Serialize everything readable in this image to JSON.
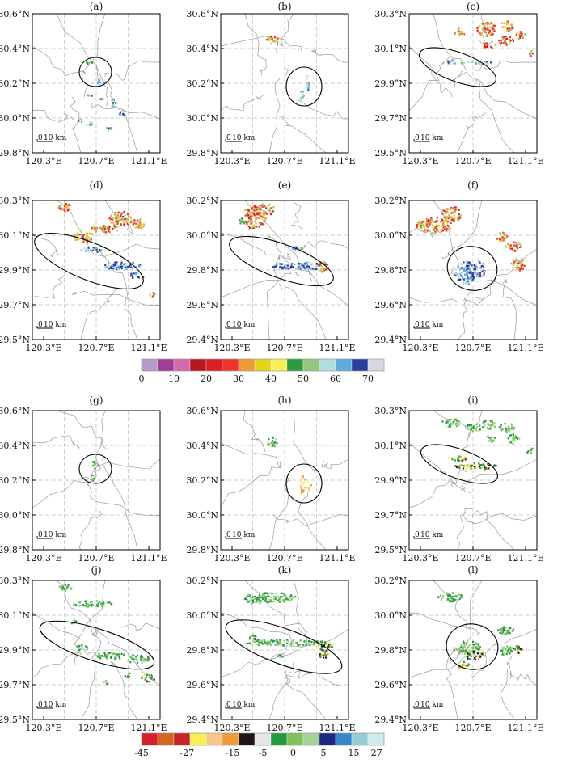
{
  "figure": {
    "colorbar_top": {
      "colors": [
        "#b59acb",
        "#a23c96",
        "#d06aa8",
        "#b5181e",
        "#d81f26",
        "#ed3530",
        "#f09a34",
        "#e2d31c",
        "#f7f156",
        "#2e9a3f",
        "#92c97f",
        "#b2dde0",
        "#60a9dd",
        "#2b3f9f",
        "#d8d8e2"
      ],
      "labels": [
        "0",
        "10",
        "20",
        "30",
        "40",
        "50",
        "60",
        "70"
      ]
    },
    "colorbar_bottom": {
      "colors": [
        "#d3202a",
        "#d4661f",
        "#c4242b",
        "#f7f150",
        "#f6c88a",
        "#ee9c3a",
        "#1f1416",
        "#e5e5e5",
        "#259a3e",
        "#7fc25b",
        "#a4d19a",
        "#1b2a80",
        "#3b86c9",
        "#96ccd3",
        "#cfeaea"
      ],
      "labels": [
        "-45",
        "-27",
        "-15",
        "-5",
        "0",
        "5",
        "15",
        "27"
      ]
    }
  },
  "chart_data": [
    {
      "panel": "(a)",
      "type": "map",
      "field": "reflectivity",
      "ylabels": [
        "30.6°N",
        "30.4°N",
        "30.2°N",
        "30.0°N",
        "29.8°N"
      ],
      "xlabels": [
        "120.3°E",
        "120.7°E",
        "121.1°E"
      ],
      "scalebar": "10 km"
    },
    {
      "panel": "(b)",
      "type": "map",
      "field": "reflectivity",
      "ylabels": [
        "30.6°N",
        "30.4°N",
        "30.2°N",
        "30.0°N",
        "29.8°N"
      ],
      "xlabels": [
        "120.3°E",
        "120.7°E",
        "121.1°E"
      ],
      "scalebar": "10 km"
    },
    {
      "panel": "(c)",
      "type": "map",
      "field": "reflectivity",
      "ylabels": [
        "30.3°N",
        "30.1°N",
        "29.9°N",
        "29.7°N",
        "29.5°N"
      ],
      "xlabels": [
        "120.3°E",
        "120.7°E",
        "121.1°E"
      ],
      "scalebar": "10 km"
    },
    {
      "panel": "(d)",
      "type": "map",
      "field": "reflectivity",
      "ylabels": [
        "30.3°N",
        "30.1°N",
        "29.9°N",
        "29.7°N",
        "29.5°N"
      ],
      "xlabels": [
        "120.3°E",
        "120.7°E",
        "121.1°E"
      ],
      "scalebar": "10 km"
    },
    {
      "panel": "(e)",
      "type": "map",
      "field": "reflectivity",
      "ylabels": [
        "30.2°N",
        "30.0°N",
        "29.8°N",
        "29.6°N",
        "29.4°N"
      ],
      "xlabels": [
        "120.3°E",
        "120.7°E",
        "121.1°E"
      ],
      "scalebar": "10 km"
    },
    {
      "panel": "(f)",
      "type": "map",
      "field": "reflectivity",
      "ylabels": [
        "30.2°N",
        "30.0°N",
        "29.8°N",
        "29.6°N",
        "29.4°N"
      ],
      "xlabels": [
        "120.3°E",
        "120.7°E",
        "121.1°E"
      ],
      "scalebar": "10 km"
    },
    {
      "panel": "(g)",
      "type": "map",
      "field": "velocity",
      "ylabels": [
        "30.6°N",
        "30.4°N",
        "30.2°N",
        "30.0°N",
        "29.8°N"
      ],
      "xlabels": [
        "120.3°E",
        "120.7°E",
        "121.1°E"
      ],
      "scalebar": "10 km"
    },
    {
      "panel": "(h)",
      "type": "map",
      "field": "velocity",
      "ylabels": [
        "30.6°N",
        "30.4°N",
        "30.2°N",
        "30.0°N",
        "29.8°N"
      ],
      "xlabels": [
        "120.3°E",
        "120.7°E",
        "121.1°E"
      ],
      "scalebar": "10 km"
    },
    {
      "panel": "(i)",
      "type": "map",
      "field": "velocity",
      "ylabels": [
        "30.3°N",
        "30.1°N",
        "29.9°N",
        "29.7°N",
        "29.5°N"
      ],
      "xlabels": [
        "120.3°E",
        "120.7°E",
        "121.1°E"
      ],
      "scalebar": "10 km"
    },
    {
      "panel": "(j)",
      "type": "map",
      "field": "velocity",
      "ylabels": [
        "30.3°N",
        "30.1°N",
        "29.9°N",
        "29.7°N",
        "29.5°N"
      ],
      "xlabels": [
        "120.3°E",
        "120.7°E",
        "121.1°E"
      ],
      "scalebar": "10 km"
    },
    {
      "panel": "(k)",
      "type": "map",
      "field": "velocity",
      "ylabels": [
        "30.2°N",
        "30.0°N",
        "29.8°N",
        "29.6°N",
        "29.4°N"
      ],
      "xlabels": [
        "120.3°E",
        "120.7°E",
        "121.1°E"
      ],
      "scalebar": "10 km"
    },
    {
      "panel": "(l)",
      "type": "map",
      "field": "velocity",
      "ylabels": [
        "30.2°N",
        "30.0°N",
        "29.8°N",
        "29.6°N",
        "29.4°N"
      ],
      "xlabels": [
        "120.3°E",
        "120.7°E",
        "121.1°E"
      ],
      "scalebar": "10 km"
    }
  ]
}
